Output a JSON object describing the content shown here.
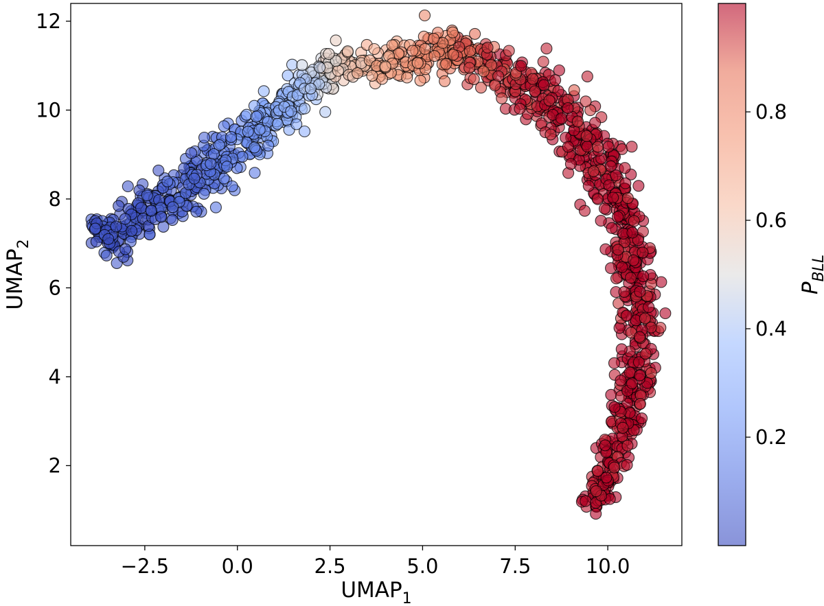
{
  "chart_data": {
    "type": "scatter",
    "title": "",
    "xlabel": {
      "main": "UMAP",
      "sub": "1"
    },
    "ylabel": {
      "main": "UMAP",
      "sub": "2"
    },
    "xlim": [
      -4.5,
      12.0
    ],
    "ylim": [
      0.2,
      12.4
    ],
    "xticks": [
      -2.5,
      0.0,
      2.5,
      5.0,
      7.5,
      10.0
    ],
    "xtick_labels": [
      "−2.5",
      "0.0",
      "2.5",
      "5.0",
      "7.5",
      "10.0"
    ],
    "yticks": [
      2,
      4,
      6,
      8,
      10,
      12
    ],
    "ytick_labels": [
      "2",
      "4",
      "6",
      "8",
      "10",
      "12"
    ],
    "grid": false,
    "legend": "none",
    "marker": {
      "shape": "circle",
      "edgecolor": "#000000",
      "alpha": 0.6
    },
    "colorbar": {
      "label": {
        "main": "P",
        "sub": "BLL"
      },
      "colormap": "coolwarm",
      "range": [
        0.0,
        1.0
      ],
      "ticks": [
        0.2,
        0.4,
        0.6,
        0.8
      ],
      "tick_labels": [
        "0.2",
        "0.4",
        "0.6",
        "0.8"
      ],
      "colors": [
        "#3b4cc0",
        "#dddcdc",
        "#b40426"
      ]
    },
    "point_count": 1400,
    "structure": "Points form a single curved band: from about (-4, 6.8) rising to (0, 9.5), peaking near (5.5, 11.5), then descending along x≈10–11 down to about (9.5, 0.7). Color P_BLL increases along the band from ~0 (blue) to ~1 (red).",
    "spine_path": [
      {
        "x": -3.8,
        "y": 7.0,
        "c": 0.02
      },
      {
        "x": -2.5,
        "y": 7.7,
        "c": 0.04
      },
      {
        "x": -1.3,
        "y": 8.3,
        "c": 0.07
      },
      {
        "x": -0.2,
        "y": 9.1,
        "c": 0.14
      },
      {
        "x": 0.8,
        "y": 9.7,
        "c": 0.26
      },
      {
        "x": 1.8,
        "y": 10.5,
        "c": 0.38
      },
      {
        "x": 2.6,
        "y": 11.0,
        "c": 0.55
      },
      {
        "x": 3.5,
        "y": 11.0,
        "c": 0.66
      },
      {
        "x": 4.5,
        "y": 11.1,
        "c": 0.75
      },
      {
        "x": 5.5,
        "y": 11.4,
        "c": 0.85
      },
      {
        "x": 6.8,
        "y": 11.1,
        "c": 0.93
      },
      {
        "x": 8.0,
        "y": 10.5,
        "c": 0.97
      },
      {
        "x": 9.2,
        "y": 9.5,
        "c": 0.99
      },
      {
        "x": 10.1,
        "y": 8.3,
        "c": 1.0
      },
      {
        "x": 10.6,
        "y": 7.0,
        "c": 1.0
      },
      {
        "x": 10.9,
        "y": 5.5,
        "c": 1.0
      },
      {
        "x": 10.8,
        "y": 4.2,
        "c": 1.0
      },
      {
        "x": 10.5,
        "y": 3.0,
        "c": 1.0
      },
      {
        "x": 10.1,
        "y": 2.0,
        "c": 1.0
      },
      {
        "x": 9.6,
        "y": 1.0,
        "c": 1.0
      }
    ],
    "band_halfwidth": [
      0.45,
      0.55,
      0.6,
      0.6,
      0.5,
      0.45,
      0.35,
      0.4,
      0.4,
      0.4,
      0.45,
      0.6,
      0.65,
      0.6,
      0.55,
      0.5,
      0.5,
      0.45,
      0.35,
      0.3
    ]
  }
}
